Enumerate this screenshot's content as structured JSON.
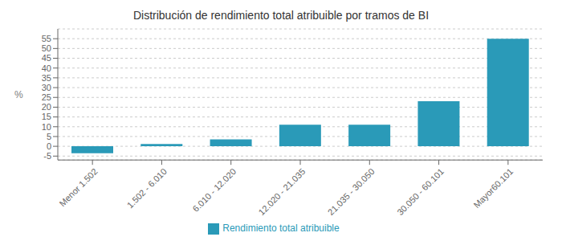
{
  "chart_data": {
    "type": "bar",
    "title": "Distribución de rendimiento total atribuible por tramos de BI",
    "categories": [
      "Menor 1.502",
      "1.502 - 6.010",
      "6.010 - 12.020",
      "12.020 - 21.035",
      "21.035 - 30.050",
      "30.050 - 60.101",
      "Mayor60.101"
    ],
    "series": [
      {
        "name": "Rendimiento total atribuible",
        "color": "#2a9ab8",
        "values": [
          -3.5,
          1.2,
          3.5,
          11.0,
          11.0,
          23.0,
          55.0
        ]
      }
    ],
    "ylabel": "%",
    "ylim": [
      -7,
      60
    ],
    "yticks": [
      -5,
      0,
      5,
      10,
      15,
      20,
      25,
      30,
      35,
      40,
      45,
      50,
      55
    ],
    "grid": true,
    "legend": "bottom"
  }
}
